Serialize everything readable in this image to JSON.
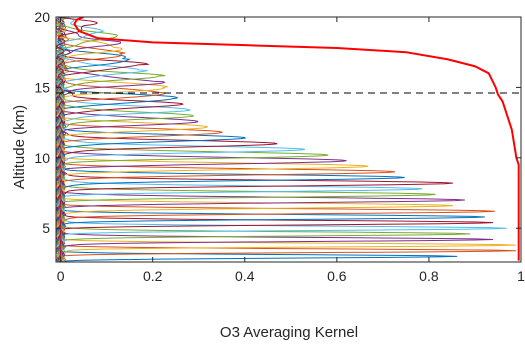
{
  "chart_data": {
    "type": "line",
    "xlabel": "O3 Averaging Kernel",
    "ylabel": "Altitude (km)",
    "xlim": [
      -0.01,
      1.0
    ],
    "ylim": [
      2.6,
      20
    ],
    "xticks": [
      0,
      0.2,
      0.4,
      0.6,
      0.8,
      1
    ],
    "xtick_labels": [
      "0",
      "0.2",
      "0.4",
      "0.6",
      "0.8",
      "1"
    ],
    "yticks": [
      5,
      10,
      15,
      20
    ],
    "ytick_labels": [
      "5",
      "10",
      "15",
      "20"
    ],
    "grid": false,
    "legend": "none",
    "reference_line": {
      "y": 14.6,
      "style": "dashed",
      "color": "#000000"
    },
    "line_colors": [
      "#0072bd",
      "#d95319",
      "#edb120",
      "#7e2f8e",
      "#77ac30",
      "#4dbeee",
      "#a2142f"
    ],
    "kernel_peaks": [
      {
        "alt": 3.0,
        "peak": 0.85
      },
      {
        "alt": 3.4,
        "peak": 0.98
      },
      {
        "alt": 3.8,
        "peak": 0.99
      },
      {
        "alt": 4.2,
        "peak": 0.95
      },
      {
        "alt": 4.6,
        "peak": 0.9
      },
      {
        "alt": 5.0,
        "peak": 0.97
      },
      {
        "alt": 5.4,
        "peak": 0.93
      },
      {
        "alt": 5.8,
        "peak": 0.91
      },
      {
        "alt": 6.2,
        "peak": 0.94
      },
      {
        "alt": 6.6,
        "peak": 0.86
      },
      {
        "alt": 7.0,
        "peak": 0.89
      },
      {
        "alt": 7.4,
        "peak": 0.82
      },
      {
        "alt": 7.8,
        "peak": 0.78
      },
      {
        "alt": 8.2,
        "peak": 0.84
      },
      {
        "alt": 8.6,
        "peak": 0.74
      },
      {
        "alt": 9.0,
        "peak": 0.73
      },
      {
        "alt": 9.4,
        "peak": 0.68
      },
      {
        "alt": 9.8,
        "peak": 0.63
      },
      {
        "alt": 10.2,
        "peak": 0.58
      },
      {
        "alt": 10.6,
        "peak": 0.52
      },
      {
        "alt": 11.0,
        "peak": 0.46
      },
      {
        "alt": 11.4,
        "peak": 0.4
      },
      {
        "alt": 11.8,
        "peak": 0.36
      },
      {
        "alt": 12.2,
        "peak": 0.33
      },
      {
        "alt": 12.6,
        "peak": 0.3
      },
      {
        "alt": 13.0,
        "peak": 0.28
      },
      {
        "alt": 13.4,
        "peak": 0.27
      },
      {
        "alt": 13.8,
        "peak": 0.26
      },
      {
        "alt": 14.2,
        "peak": 0.25
      },
      {
        "alt": 14.6,
        "peak": 0.24
      },
      {
        "alt": 15.0,
        "peak": 0.23
      },
      {
        "alt": 15.4,
        "peak": 0.22
      },
      {
        "alt": 15.8,
        "peak": 0.2
      },
      {
        "alt": 16.2,
        "peak": 0.18
      },
      {
        "alt": 16.6,
        "peak": 0.17
      },
      {
        "alt": 17.0,
        "peak": 0.16
      },
      {
        "alt": 17.4,
        "peak": 0.14
      },
      {
        "alt": 17.8,
        "peak": 0.13
      },
      {
        "alt": 18.2,
        "peak": 0.12
      },
      {
        "alt": 18.6,
        "peak": 0.11
      },
      {
        "alt": 19.0,
        "peak": 0.09
      },
      {
        "alt": 19.4,
        "peak": 0.06
      }
    ],
    "total_kernel": {
      "color": "#ff0000",
      "points": [
        [
          0.995,
          2.7
        ],
        [
          0.995,
          4.0
        ],
        [
          0.995,
          6.0
        ],
        [
          0.995,
          8.0
        ],
        [
          0.995,
          9.5
        ],
        [
          0.99,
          10.0
        ],
        [
          0.985,
          11.0
        ],
        [
          0.98,
          12.0
        ],
        [
          0.97,
          13.0
        ],
        [
          0.96,
          14.0
        ],
        [
          0.95,
          14.5
        ],
        [
          0.945,
          15.0
        ],
        [
          0.93,
          16.0
        ],
        [
          0.9,
          16.5
        ],
        [
          0.84,
          17.0
        ],
        [
          0.75,
          17.5
        ],
        [
          0.6,
          17.8
        ],
        [
          0.4,
          18.0
        ],
        [
          0.2,
          18.2
        ],
        [
          0.08,
          18.5
        ],
        [
          0.04,
          19.0
        ],
        [
          0.03,
          19.5
        ],
        [
          0.035,
          19.8
        ],
        [
          0.05,
          20.0
        ]
      ]
    }
  }
}
